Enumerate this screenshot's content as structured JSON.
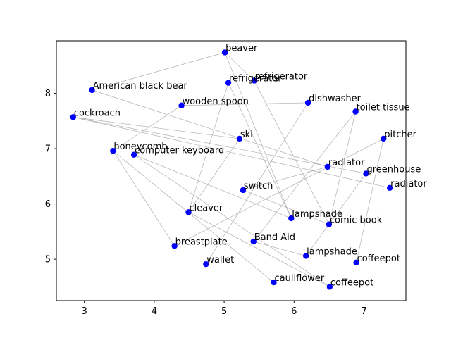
{
  "chart_data": {
    "type": "scatter",
    "title": "",
    "xlabel": "",
    "ylabel": "",
    "xlim": [
      2.6,
      7.6
    ],
    "ylim": [
      4.25,
      8.95
    ],
    "xticks": [
      3,
      4,
      5,
      6,
      7
    ],
    "yticks": [
      5,
      6,
      7,
      8
    ],
    "grid": false,
    "marker_color": "#0000ff",
    "edge_color": "#b0b0b0",
    "points": [
      {
        "label": "beaver",
        "x": 5.01,
        "y": 8.74
      },
      {
        "label": "refrigerator",
        "x": 5.43,
        "y": 8.23
      },
      {
        "label": "refrigerator",
        "x": 5.06,
        "y": 8.19
      },
      {
        "label": "American black bear",
        "x": 3.11,
        "y": 8.06
      },
      {
        "label": "dishwasher",
        "x": 6.2,
        "y": 7.83
      },
      {
        "label": "wooden spoon",
        "x": 4.39,
        "y": 7.78
      },
      {
        "label": "toilet tissue",
        "x": 6.88,
        "y": 7.67
      },
      {
        "label": "cockroach",
        "x": 2.84,
        "y": 7.57
      },
      {
        "label": "ski",
        "x": 5.22,
        "y": 7.18
      },
      {
        "label": "pitcher",
        "x": 7.28,
        "y": 7.18
      },
      {
        "label": "honeycomb",
        "x": 3.41,
        "y": 6.96
      },
      {
        "label": "computer keyboard",
        "x": 3.71,
        "y": 6.89
      },
      {
        "label": "radiator",
        "x": 6.48,
        "y": 6.67
      },
      {
        "label": "greenhouse",
        "x": 7.03,
        "y": 6.55
      },
      {
        "label": "radiator",
        "x": 7.37,
        "y": 6.29
      },
      {
        "label": "switch",
        "x": 5.27,
        "y": 6.25
      },
      {
        "label": "cleaver",
        "x": 4.49,
        "y": 5.85
      },
      {
        "label": "lampshade",
        "x": 5.96,
        "y": 5.74
      },
      {
        "label": "comic book",
        "x": 6.5,
        "y": 5.63
      },
      {
        "label": "Band Aid",
        "x": 5.42,
        "y": 5.32
      },
      {
        "label": "breastplate",
        "x": 4.29,
        "y": 5.24
      },
      {
        "label": "lampshade",
        "x": 6.17,
        "y": 5.06
      },
      {
        "label": "coffeepot",
        "x": 6.89,
        "y": 4.94
      },
      {
        "label": "wallet",
        "x": 4.74,
        "y": 4.91
      },
      {
        "label": "cauliflower",
        "x": 5.71,
        "y": 4.58
      },
      {
        "label": "coffeepot",
        "x": 6.51,
        "y": 4.5
      }
    ],
    "edges": [
      [
        3,
        0
      ],
      [
        0,
        17
      ],
      [
        1,
        18
      ],
      [
        2,
        16
      ],
      [
        2,
        17
      ],
      [
        7,
        8
      ],
      [
        7,
        14
      ],
      [
        3,
        12
      ],
      [
        5,
        4
      ],
      [
        5,
        10
      ],
      [
        6,
        19
      ],
      [
        6,
        18
      ],
      [
        9,
        20
      ],
      [
        9,
        22
      ],
      [
        10,
        20
      ],
      [
        10,
        24
      ],
      [
        11,
        25
      ],
      [
        11,
        17
      ],
      [
        8,
        16
      ],
      [
        12,
        15
      ],
      [
        13,
        21
      ],
      [
        4,
        23
      ],
      [
        16,
        25
      ],
      [
        19,
        21
      ],
      [
        15,
        18
      ],
      [
        13,
        7
      ],
      [
        0,
        1
      ]
    ]
  }
}
